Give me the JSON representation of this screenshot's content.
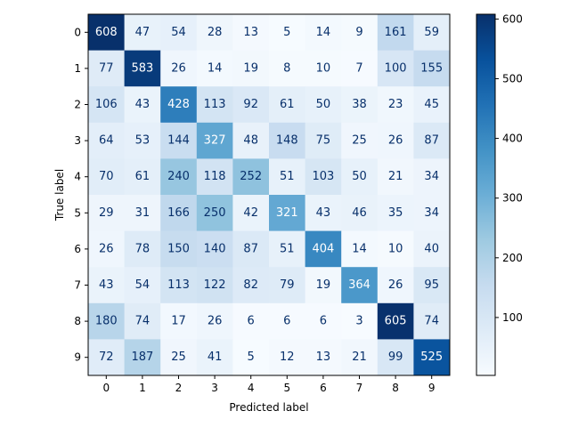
{
  "chart_data": {
    "type": "heatmap",
    "title": "",
    "xlabel": "Predicted label",
    "ylabel": "True label",
    "x_categories": [
      "0",
      "1",
      "2",
      "3",
      "4",
      "5",
      "6",
      "7",
      "8",
      "9"
    ],
    "y_categories": [
      "0",
      "1",
      "2",
      "3",
      "4",
      "5",
      "6",
      "7",
      "8",
      "9"
    ],
    "values": [
      [
        608,
        47,
        54,
        28,
        13,
        5,
        14,
        9,
        161,
        59
      ],
      [
        77,
        583,
        26,
        14,
        19,
        8,
        10,
        7,
        100,
        155
      ],
      [
        106,
        43,
        428,
        113,
        92,
        61,
        50,
        38,
        23,
        45
      ],
      [
        64,
        53,
        144,
        327,
        48,
        148,
        75,
        25,
        26,
        87
      ],
      [
        70,
        61,
        240,
        118,
        252,
        51,
        103,
        50,
        21,
        34
      ],
      [
        29,
        31,
        166,
        250,
        42,
        321,
        43,
        46,
        35,
        34
      ],
      [
        26,
        78,
        150,
        140,
        87,
        51,
        404,
        14,
        10,
        40
      ],
      [
        43,
        54,
        113,
        122,
        82,
        79,
        19,
        364,
        26,
        95
      ],
      [
        180,
        74,
        17,
        26,
        6,
        6,
        6,
        3,
        605,
        74
      ],
      [
        72,
        187,
        25,
        41,
        5,
        12,
        13,
        21,
        99,
        525
      ]
    ],
    "colormap": "Blues",
    "colorbar": {
      "vmin": 3,
      "vmax": 608,
      "ticks": [
        "100",
        "200",
        "300",
        "400",
        "500",
        "600"
      ],
      "tick_values": [
        100,
        200,
        300,
        400,
        500,
        600
      ]
    },
    "grid": false,
    "legend": "none",
    "text_light_color": "#ffffff",
    "text_dark_color": "#08306b"
  }
}
